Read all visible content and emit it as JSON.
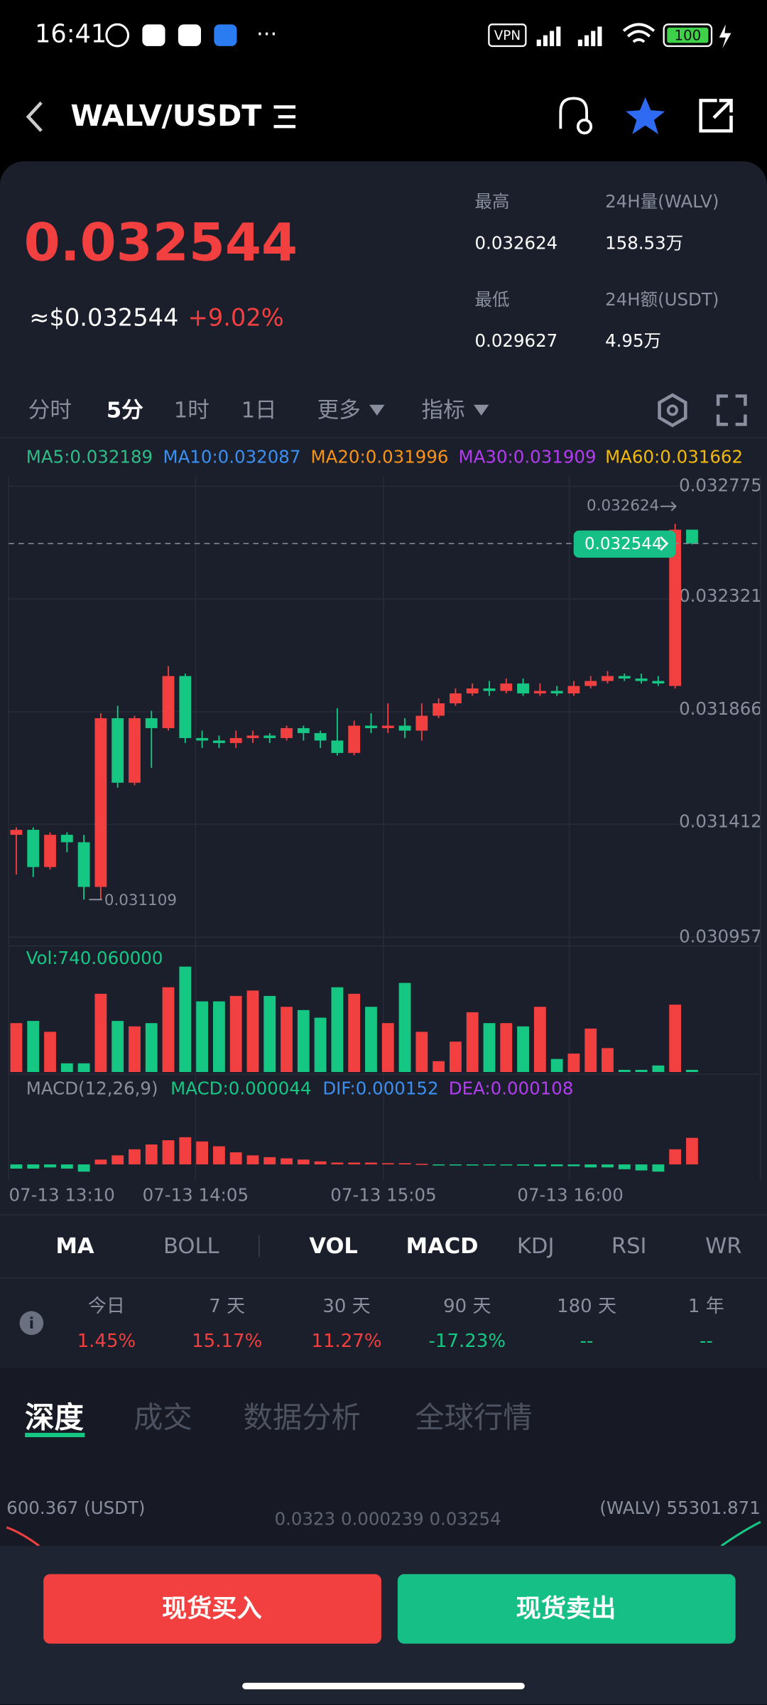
{
  "status_bar": {
    "time": "16:41",
    "vpn": "VPN",
    "battery": "100"
  },
  "header": {
    "pair": "WALV/USDT"
  },
  "ticker": {
    "price": "0.032544",
    "usd": "≈$0.032544",
    "change": "+9.02%",
    "stats": [
      {
        "label": "最高",
        "value": "0.032624"
      },
      {
        "label": "24H量(WALV)",
        "value": "158.53万"
      },
      {
        "label": "最低",
        "value": "0.029627"
      },
      {
        "label": "24H额(USDT)",
        "value": "4.95万"
      }
    ]
  },
  "intervals": [
    "分时",
    "5分",
    "1时",
    "1日",
    "更多",
    "指标"
  ],
  "kline": {
    "up_color": "#f23f3f",
    "down_color": "#16c784",
    "ma_legend": [
      {
        "text": "MA5:0.032189",
        "color": "#2dbd85"
      },
      {
        "text": "MA10:0.032087",
        "color": "#3b8ff0"
      },
      {
        "text": "MA20:0.031996",
        "color": "#f7931a"
      },
      {
        "text": "MA30:0.031909",
        "color": "#b33cf0"
      },
      {
        "text": "MA60:0.031662",
        "color": "#f0b90b"
      }
    ],
    "ylim": [
      0.030957,
      0.032775
    ],
    "yticks": [
      0.032775,
      0.032321,
      0.031866,
      0.031412,
      0.030957
    ],
    "last_price": 0.032544,
    "high": 0.032624,
    "low": 0.031109,
    "candles": [
      {
        "open": 0.03137,
        "close": 0.03139,
        "high": 0.0314,
        "low": 0.03121
      },
      {
        "open": 0.03139,
        "close": 0.03124,
        "high": 0.0314,
        "low": 0.0312
      },
      {
        "open": 0.03124,
        "close": 0.03137,
        "high": 0.03138,
        "low": 0.03123
      },
      {
        "open": 0.03137,
        "close": 0.03134,
        "high": 0.03138,
        "low": 0.0313
      },
      {
        "open": 0.03134,
        "close": 0.03116,
        "high": 0.03137,
        "low": 0.031109
      },
      {
        "open": 0.03116,
        "close": 0.03184,
        "high": 0.03186,
        "low": 0.031109
      },
      {
        "open": 0.03184,
        "close": 0.03158,
        "high": 0.03189,
        "low": 0.03156
      },
      {
        "open": 0.03158,
        "close": 0.03184,
        "high": 0.03185,
        "low": 0.03157
      },
      {
        "open": 0.03184,
        "close": 0.0318,
        "high": 0.03187,
        "low": 0.03164
      },
      {
        "open": 0.0318,
        "close": 0.03201,
        "high": 0.03205,
        "low": 0.03179
      },
      {
        "open": 0.03201,
        "close": 0.03176,
        "high": 0.03202,
        "low": 0.03174
      },
      {
        "open": 0.03176,
        "close": 0.03175,
        "high": 0.03179,
        "low": 0.03172
      },
      {
        "open": 0.03175,
        "close": 0.03174,
        "high": 0.03177,
        "low": 0.03172
      },
      {
        "open": 0.03174,
        "close": 0.03176,
        "high": 0.03179,
        "low": 0.03172
      },
      {
        "open": 0.03176,
        "close": 0.03177,
        "high": 0.03179,
        "low": 0.03174
      },
      {
        "open": 0.03177,
        "close": 0.03176,
        "high": 0.03178,
        "low": 0.03174
      },
      {
        "open": 0.03176,
        "close": 0.0318,
        "high": 0.03181,
        "low": 0.03175
      },
      {
        "open": 0.0318,
        "close": 0.03178,
        "high": 0.03181,
        "low": 0.03175
      },
      {
        "open": 0.03178,
        "close": 0.03175,
        "high": 0.03179,
        "low": 0.03172
      },
      {
        "open": 0.03175,
        "close": 0.0317,
        "high": 0.03188,
        "low": 0.03169
      },
      {
        "open": 0.0317,
        "close": 0.03181,
        "high": 0.03183,
        "low": 0.03169
      },
      {
        "open": 0.03181,
        "close": 0.0318,
        "high": 0.03186,
        "low": 0.03178
      },
      {
        "open": 0.0318,
        "close": 0.03181,
        "high": 0.0319,
        "low": 0.03178
      },
      {
        "open": 0.03181,
        "close": 0.03179,
        "high": 0.03184,
        "low": 0.03176
      },
      {
        "open": 0.03179,
        "close": 0.03185,
        "high": 0.0319,
        "low": 0.03175
      },
      {
        "open": 0.03185,
        "close": 0.0319,
        "high": 0.03192,
        "low": 0.03184
      },
      {
        "open": 0.0319,
        "close": 0.03194,
        "high": 0.03196,
        "low": 0.03189
      },
      {
        "open": 0.03194,
        "close": 0.03196,
        "high": 0.03198,
        "low": 0.03193
      },
      {
        "open": 0.03196,
        "close": 0.03195,
        "high": 0.03199,
        "low": 0.03193
      },
      {
        "open": 0.03195,
        "close": 0.03198,
        "high": 0.032,
        "low": 0.03194
      },
      {
        "open": 0.03198,
        "close": 0.03194,
        "high": 0.032,
        "low": 0.03193
      },
      {
        "open": 0.03194,
        "close": 0.03195,
        "high": 0.03198,
        "low": 0.03193
      },
      {
        "open": 0.03195,
        "close": 0.03194,
        "high": 0.03197,
        "low": 0.03193
      },
      {
        "open": 0.03194,
        "close": 0.03197,
        "high": 0.03199,
        "low": 0.03193
      },
      {
        "open": 0.03197,
        "close": 0.03199,
        "high": 0.03201,
        "low": 0.03196
      },
      {
        "open": 0.03199,
        "close": 0.03201,
        "high": 0.03203,
        "low": 0.03198
      },
      {
        "open": 0.03201,
        "close": 0.032,
        "high": 0.03202,
        "low": 0.03199
      },
      {
        "open": 0.032,
        "close": 0.03199,
        "high": 0.03202,
        "low": 0.03198
      },
      {
        "open": 0.03199,
        "close": 0.03198,
        "high": 0.03201,
        "low": 0.03197
      },
      {
        "open": 0.03197,
        "close": 0.0326,
        "high": 0.032624,
        "low": 0.03196
      },
      {
        "open": 0.0326,
        "close": 0.032544,
        "high": 0.0326,
        "low": 0.03254
      }
    ],
    "volume": {
      "label": "Vol:740.060000",
      "values": [
        450,
        470,
        370,
        80,
        80,
        720,
        470,
        420,
        450,
        780,
        970,
        650,
        650,
        700,
        750,
        700,
        600,
        570,
        500,
        780,
        720,
        600,
        450,
        820,
        370,
        100,
        280,
        550,
        450,
        450,
        420,
        600,
        120,
        170,
        400,
        220,
        20,
        20,
        60,
        620,
        20
      ]
    },
    "macd": {
      "legend": [
        {
          "text": "MACD(12,26,9)",
          "color": "#8a8f9f"
        },
        {
          "text": "MACD:0.000044",
          "color": "#16c784"
        },
        {
          "text": "DIF:0.000152",
          "color": "#3b8ff0"
        },
        {
          "text": "DEA:0.000108",
          "color": "#b33cf0"
        }
      ],
      "values": [
        -7e-06,
        -7e-06,
        -5e-06,
        -7e-06,
        -1.2e-05,
        8e-06,
        1.5e-05,
        2.5e-05,
        3.3e-05,
        4e-05,
        4.5e-05,
        3.8e-05,
        3e-05,
        2e-05,
        1.5e-05,
        1.2e-05,
        1e-05,
        8e-06,
        5e-06,
        3e-06,
        3e-06,
        3e-06,
        2e-06,
        2e-06,
        1e-06,
        -1e-06,
        -1e-06,
        -1e-06,
        -1e-06,
        -1e-06,
        -2e-06,
        -3e-06,
        -3e-06,
        -3e-06,
        -5e-06,
        -5e-06,
        -8e-06,
        -1e-05,
        -1.2e-05,
        2.5e-05,
        4.4e-05
      ]
    },
    "time_labels": [
      "07-13 13:10",
      "07-13 14:05",
      "07-13 15:05",
      "07-13 16:00"
    ]
  },
  "indicator_tabs": [
    "MA",
    "BOLL",
    "VOL",
    "MACD",
    "KDJ",
    "RSI",
    "WR"
  ],
  "performance": [
    {
      "period": "今日",
      "value": "1.45%"
    },
    {
      "period": "7 天",
      "value": "15.17%"
    },
    {
      "period": "30 天",
      "value": "11.27%"
    },
    {
      "period": "90 天",
      "value": "-17.23%"
    },
    {
      "period": "180 天",
      "value": "--"
    },
    {
      "period": "1 年",
      "value": "--"
    }
  ],
  "section_tabs": [
    "深度",
    "成交",
    "数据分析",
    "全球行情"
  ],
  "depth": {
    "left": "600.367 (USDT)",
    "center": "0.0323 0.000239 0.03254",
    "right": "(WALV) 55301.871"
  },
  "buttons": {
    "buy": "现货买入",
    "sell": "现货卖出"
  }
}
